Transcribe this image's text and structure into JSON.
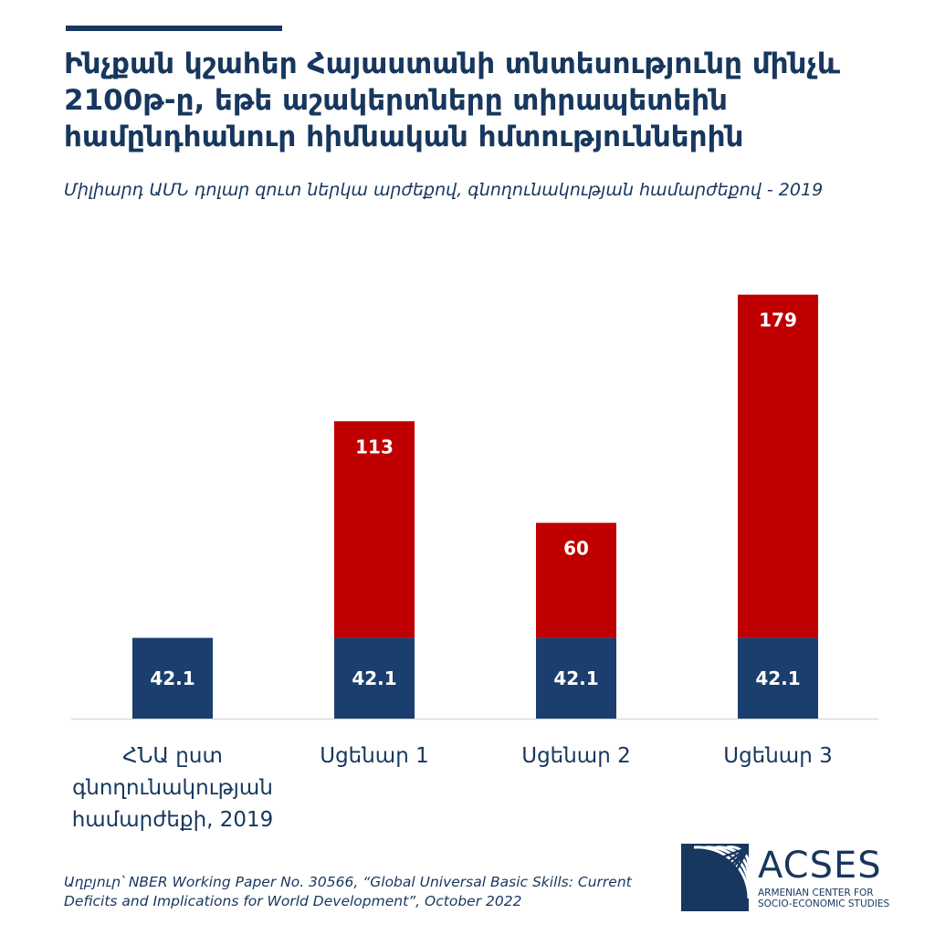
{
  "title_lines": [
    "Ինչքան կշահեր Հայաստանի տնտեսությունը մինչև",
    "2100թ-ը, եթե աշակերտները տիրապետեին",
    "համընդհանուր հիմնական հմտություններին"
  ],
  "subtitle": "Միլիարդ ԱՄՆ դոլար զուտ ներկա արժեքով, գնողունակության համարժեքով - 2019",
  "chart_data": {
    "type": "bar",
    "stacked": true,
    "categories": [
      [
        "ՀՆԱ ըստ",
        "գնողունակության",
        "համարժեքի, 2019"
      ],
      [
        "Սցենար 1"
      ],
      [
        "Սցենար 2"
      ],
      [
        "Սցենար 3"
      ]
    ],
    "series": [
      {
        "values": [
          42.1,
          42.1,
          42.1,
          42.1
        ],
        "labels": [
          "42.1",
          "42.1",
          "42.1",
          "42.1"
        ],
        "color": "#1a3f6f"
      },
      {
        "values": [
          null,
          113,
          60,
          179
        ],
        "labels": [
          "",
          "113",
          "60",
          "179"
        ],
        "color": "#c00000"
      }
    ],
    "legend": "none",
    "grid": false
  },
  "source_lines": [
    "Աղբյուր՝ NBER Working Paper No. 30566, “Global Universal Basic Skills: Current",
    "Deficits and Implications for World Development”, October 2022"
  ],
  "logo": {
    "name": "ACSES",
    "sub_lines": [
      "ARMENIAN CENTER FOR",
      "SOCIO-ECONOMIC STUDIES"
    ]
  }
}
